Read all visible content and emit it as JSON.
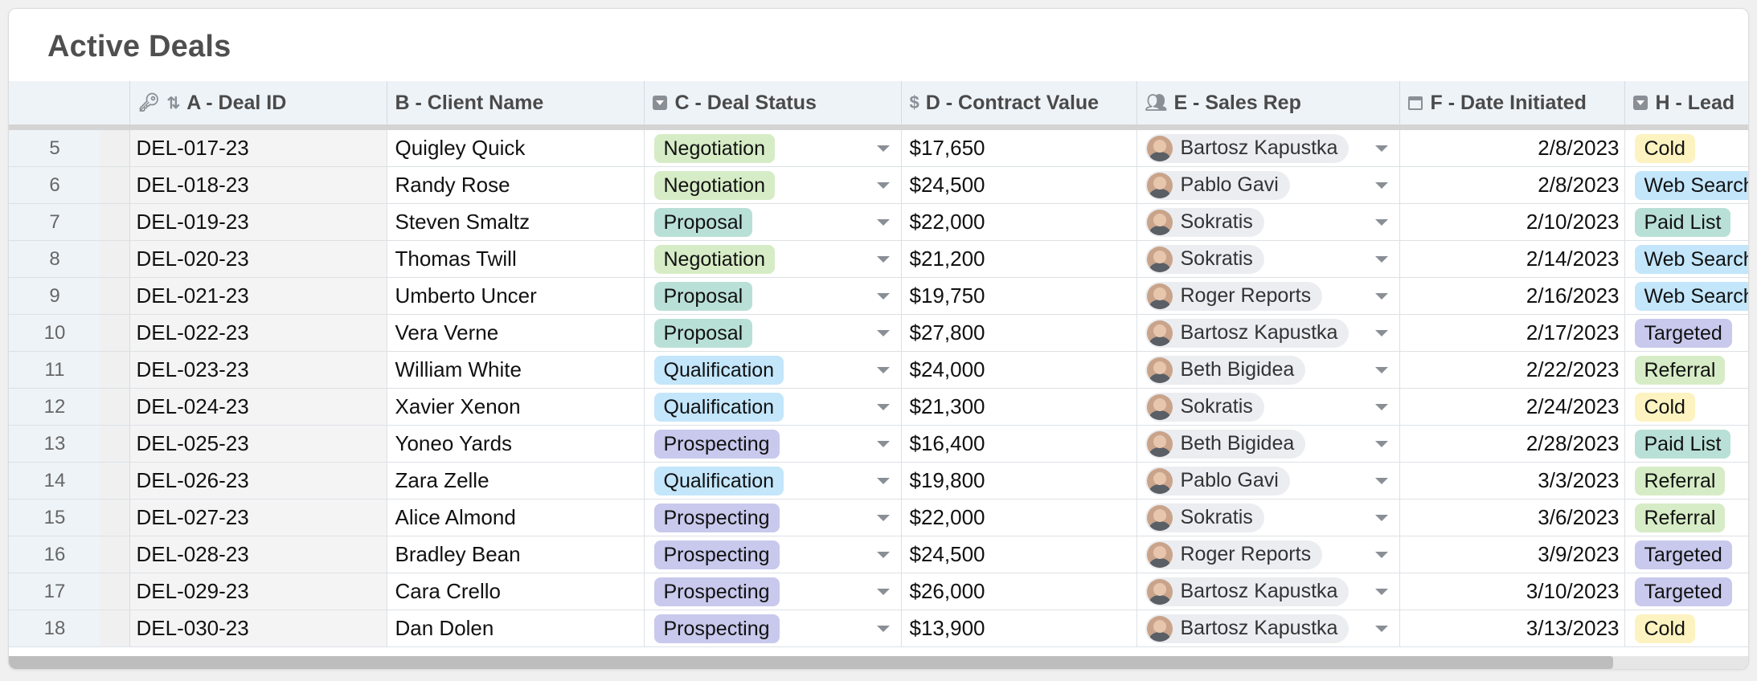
{
  "title": "Active Deals",
  "columns": [
    {
      "label": "A - Deal ID"
    },
    {
      "label": "B - Client Name"
    },
    {
      "label": "C - Deal Status"
    },
    {
      "label": "D - Contract Value"
    },
    {
      "label": "E - Sales Rep"
    },
    {
      "label": "F - Date Initiated"
    },
    {
      "label": "H - Lead"
    }
  ],
  "colors": {
    "Negotiation": "#d6ecc6",
    "Proposal": "#b9e0d6",
    "Qualification": "#c3e6fb",
    "Prospecting": "#c8c9ed",
    "Cold": "#fdf3c0",
    "Web Search": "#c3e6fb",
    "Paid List": "#b9e0d6",
    "Targeted": "#c8c9ed",
    "Referral": "#d6ecc6"
  },
  "rows": [
    {
      "num": "5",
      "id": "DEL-017-23",
      "client": "Quigley Quick",
      "status": "Negotiation",
      "value": "$17,650",
      "rep": "Bartosz Kapustka",
      "date": "2/8/2023",
      "lead": "Cold"
    },
    {
      "num": "6",
      "id": "DEL-018-23",
      "client": "Randy Rose",
      "status": "Negotiation",
      "value": "$24,500",
      "rep": "Pablo Gavi",
      "date": "2/8/2023",
      "lead": "Web Search"
    },
    {
      "num": "7",
      "id": "DEL-019-23",
      "client": "Steven Smaltz",
      "status": "Proposal",
      "value": "$22,000",
      "rep": "Sokratis",
      "date": "2/10/2023",
      "lead": "Paid List"
    },
    {
      "num": "8",
      "id": "DEL-020-23",
      "client": "Thomas Twill",
      "status": "Negotiation",
      "value": "$21,200",
      "rep": "Sokratis",
      "date": "2/14/2023",
      "lead": "Web Search"
    },
    {
      "num": "9",
      "id": "DEL-021-23",
      "client": "Umberto Uncer",
      "status": "Proposal",
      "value": "$19,750",
      "rep": "Roger Reports",
      "date": "2/16/2023",
      "lead": "Web Search"
    },
    {
      "num": "10",
      "id": "DEL-022-23",
      "client": "Vera Verne",
      "status": "Proposal",
      "value": "$27,800",
      "rep": "Bartosz Kapustka",
      "date": "2/17/2023",
      "lead": "Targeted"
    },
    {
      "num": "11",
      "id": "DEL-023-23",
      "client": "William White",
      "status": "Qualification",
      "value": "$24,000",
      "rep": "Beth Bigidea",
      "date": "2/22/2023",
      "lead": "Referral"
    },
    {
      "num": "12",
      "id": "DEL-024-23",
      "client": "Xavier Xenon",
      "status": "Qualification",
      "value": "$21,300",
      "rep": "Sokratis",
      "date": "2/24/2023",
      "lead": "Cold"
    },
    {
      "num": "13",
      "id": "DEL-025-23",
      "client": "Yoneo Yards",
      "status": "Prospecting",
      "value": "$16,400",
      "rep": "Beth Bigidea",
      "date": "2/28/2023",
      "lead": "Paid List"
    },
    {
      "num": "14",
      "id": "DEL-026-23",
      "client": "Zara Zelle",
      "status": "Qualification",
      "value": "$19,800",
      "rep": "Pablo Gavi",
      "date": "3/3/2023",
      "lead": "Referral"
    },
    {
      "num": "15",
      "id": "DEL-027-23",
      "client": "Alice Almond",
      "status": "Prospecting",
      "value": "$22,000",
      "rep": "Sokratis",
      "date": "3/6/2023",
      "lead": "Referral"
    },
    {
      "num": "16",
      "id": "DEL-028-23",
      "client": "Bradley Bean",
      "status": "Prospecting",
      "value": "$24,500",
      "rep": "Roger Reports",
      "date": "3/9/2023",
      "lead": "Targeted"
    },
    {
      "num": "17",
      "id": "DEL-029-23",
      "client": "Cara Crello",
      "status": "Prospecting",
      "value": "$26,000",
      "rep": "Bartosz Kapustka",
      "date": "3/10/2023",
      "lead": "Targeted"
    },
    {
      "num": "18",
      "id": "DEL-030-23",
      "client": "Dan Dolen",
      "status": "Prospecting",
      "value": "$13,900",
      "rep": "Bartosz Kapustka",
      "date": "3/13/2023",
      "lead": "Cold"
    }
  ]
}
